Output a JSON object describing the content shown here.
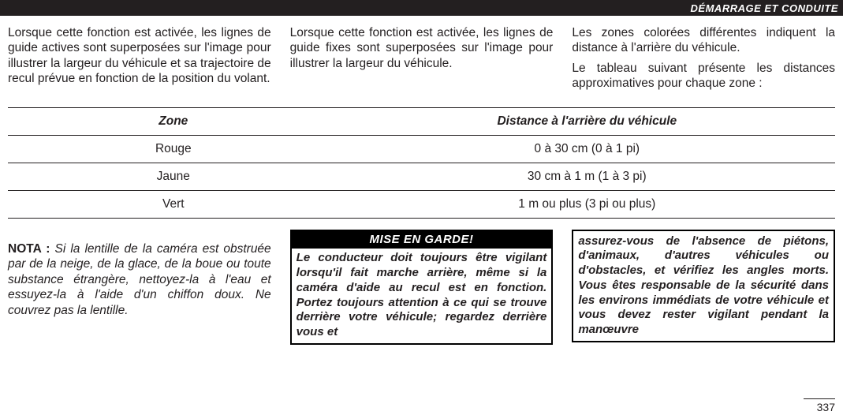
{
  "header": {
    "title": "DÉMARRAGE ET CONDUITE"
  },
  "intro": {
    "col1": "Lorsque cette fonction est activée, les lignes de guide actives sont superposées sur l'image pour illustrer la largeur du véhicule et sa trajectoire de recul prévue en fonction de la position du volant.",
    "col2": "Lorsque cette fonction est activée, les lignes de guide fixes sont superposées sur l'image pour illustrer la largeur du véhicule.",
    "col3a": "Les zones colorées différentes indiquent la distance à l'arrière du véhicule.",
    "col3b": "Le tableau suivant présente les distances approximatives pour chaque zone :"
  },
  "table": {
    "headers": {
      "zone": "Zone",
      "dist": "Distance à l'arrière du véhicule"
    },
    "rows": [
      {
        "zone": "Rouge",
        "dist": "0 à 30 cm (0 à 1 pi)"
      },
      {
        "zone": "Jaune",
        "dist": "30 cm à 1 m (1 à 3 pi)"
      },
      {
        "zone": "Vert",
        "dist": "1 m ou plus (3 pi ou plus)"
      }
    ]
  },
  "nota": {
    "label": "NOTA :",
    "text": " Si la lentille de la caméra est obstruée par de la neige, de la glace, de la boue ou toute substance étrangère, nettoyez-la à l'eau et essuyez-la à l'aide d'un chiffon doux. Ne couvrez pas la lentille."
  },
  "warning": {
    "title": "MISE EN GARDE!",
    "part1": "Le conducteur doit toujours être vigilant lorsqu'il fait marche arrière, même si la caméra d'aide au recul est en fonction. Portez toujours attention à ce qui se trouve derrière votre véhicule; regardez derrière vous et",
    "part2": "assurez-vous de l'absence de piétons, d'animaux, d'autres véhicules ou d'obstacles, et vérifiez les angles morts. Vous êtes responsable de la sécurité dans les environs immédiats de votre véhicule et vous devez rester vigilant pendant la manœuvre"
  },
  "page": "337"
}
